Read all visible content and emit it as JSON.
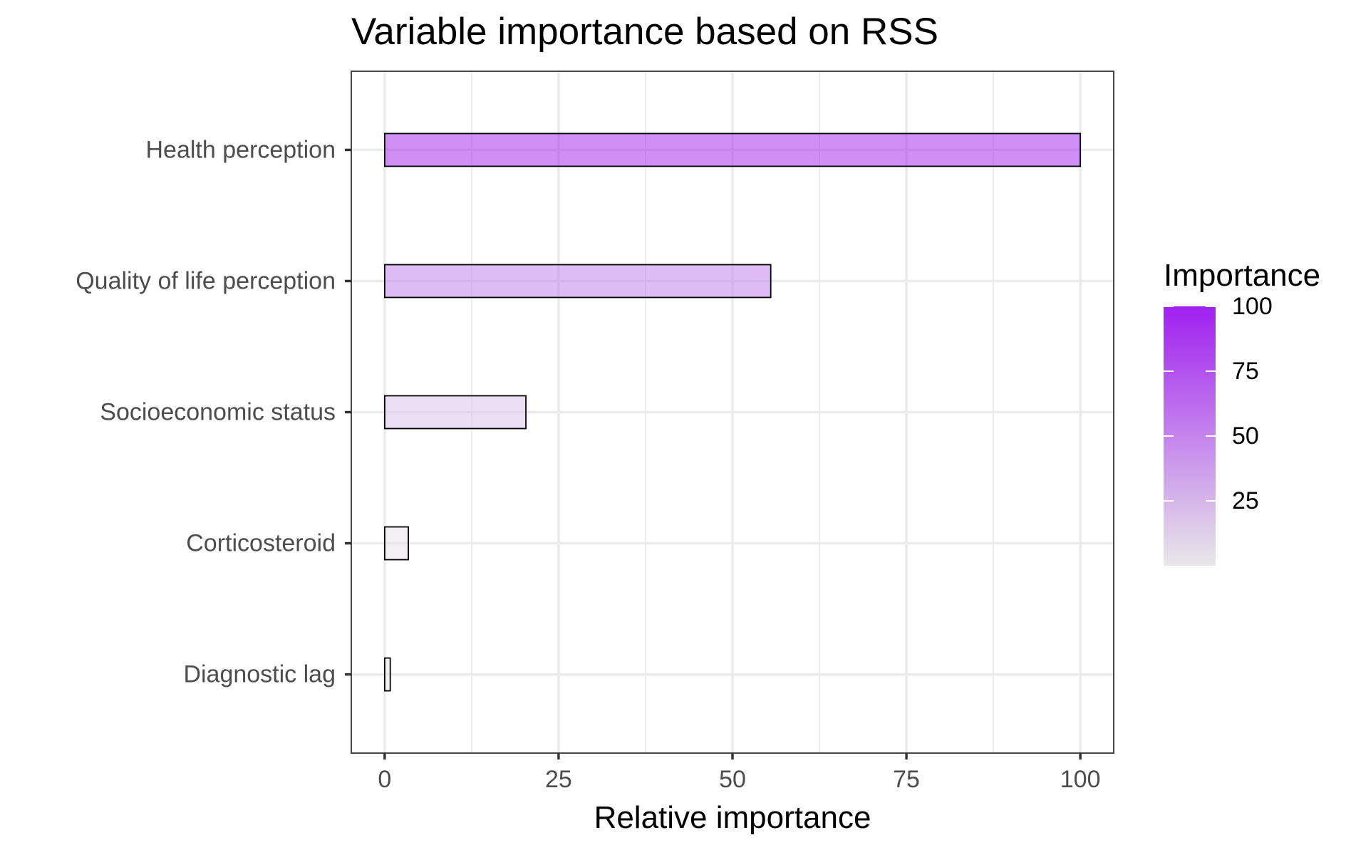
{
  "chart_data": {
    "type": "bar",
    "orientation": "horizontal",
    "title": "Variable importance based on RSS",
    "xlabel": "Relative importance",
    "ylabel": "",
    "categories": [
      "Health perception",
      "Quality of life perception",
      "Socioeconomic status",
      "Corticosteroid",
      "Diagnostic lag"
    ],
    "values": [
      100,
      55.5,
      20.3,
      3.4,
      0.8
    ],
    "xlim": [
      -4.8,
      104.8
    ],
    "xticks": [
      0,
      25,
      50,
      75,
      100
    ],
    "x_tick_labels": [
      "0",
      "25",
      "50",
      "75",
      "100"
    ],
    "grid": true,
    "legend": {
      "title": "Importance",
      "position": "right",
      "type": "colorbar",
      "range": [
        0,
        100
      ],
      "ticks": [
        25,
        50,
        75,
        100
      ],
      "tick_labels": [
        "25",
        "50",
        "75",
        "100"
      ],
      "low_color": "#e8e8e8",
      "high_color": "#a020f0"
    }
  },
  "colors": {
    "bar_low": "#e8e8e8",
    "bar_high": "#a020f0",
    "bar_opacity": 0.5,
    "bar_outline": "#000000",
    "grid": "#ebebeb",
    "panel_border": "#333333"
  }
}
